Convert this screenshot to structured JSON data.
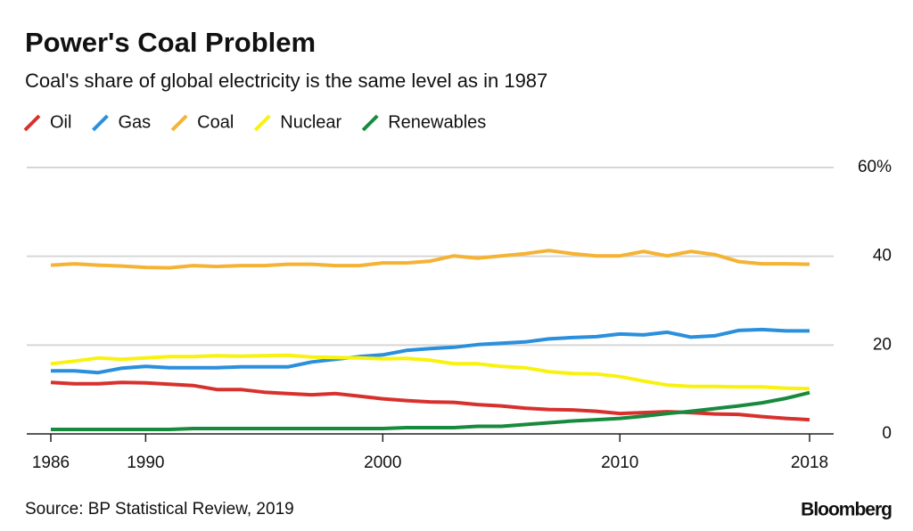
{
  "chart_data": {
    "type": "line",
    "title": "Power's Coal Problem",
    "subtitle": "Coal's share of global electricity is the same level as in 1987",
    "source": "Source: BP Statistical Review, 2019",
    "brand": "Bloomberg",
    "x": [
      1986,
      1987,
      1988,
      1989,
      1990,
      1991,
      1992,
      1993,
      1994,
      1995,
      1996,
      1997,
      1998,
      1999,
      2000,
      2001,
      2002,
      2003,
      2004,
      2005,
      2006,
      2007,
      2008,
      2009,
      2010,
      2011,
      2012,
      2013,
      2014,
      2015,
      2016,
      2017,
      2018
    ],
    "xlim": [
      1986,
      2018
    ],
    "xticks": [
      1986,
      1990,
      2000,
      2010,
      2018
    ],
    "ylim": [
      0,
      60
    ],
    "yticks": [
      0,
      20,
      40,
      {
        "value": 60,
        "label": "60%"
      }
    ],
    "grid": true,
    "legend": "top-left",
    "series": [
      {
        "name": "Oil",
        "color": "#d7312e",
        "values": [
          11.6,
          11.3,
          11.3,
          11.6,
          11.5,
          11.2,
          10.9,
          10.0,
          10.0,
          9.4,
          9.1,
          8.8,
          9.1,
          8.5,
          7.9,
          7.5,
          7.2,
          7.1,
          6.6,
          6.3,
          5.8,
          5.5,
          5.4,
          5.1,
          4.6,
          4.8,
          5.0,
          4.8,
          4.5,
          4.4,
          3.9,
          3.5,
          3.2
        ]
      },
      {
        "name": "Gas",
        "color": "#2a8fdc",
        "values": [
          14.2,
          14.2,
          13.8,
          14.8,
          15.2,
          14.9,
          14.9,
          14.9,
          15.1,
          15.1,
          15.1,
          16.2,
          16.8,
          17.4,
          17.8,
          18.8,
          19.2,
          19.5,
          20.1,
          20.4,
          20.7,
          21.4,
          21.7,
          21.9,
          22.5,
          22.3,
          22.9,
          21.8,
          22.1,
          23.3,
          23.5,
          23.2,
          23.2
        ]
      },
      {
        "name": "Coal",
        "color": "#f5b335",
        "values": [
          38.0,
          38.3,
          38.0,
          37.8,
          37.5,
          37.4,
          37.9,
          37.7,
          37.9,
          37.9,
          38.2,
          38.2,
          37.9,
          37.9,
          38.5,
          38.5,
          38.9,
          40.1,
          39.6,
          40.1,
          40.6,
          41.3,
          40.6,
          40.1,
          40.1,
          41.1,
          40.1,
          41.1,
          40.4,
          38.8,
          38.3,
          38.3,
          38.2
        ]
      },
      {
        "name": "Nuclear",
        "color": "#f8f20e",
        "values": [
          15.8,
          16.4,
          17.1,
          16.8,
          17.1,
          17.4,
          17.4,
          17.6,
          17.5,
          17.6,
          17.7,
          17.3,
          17.2,
          17.1,
          16.9,
          17.0,
          16.6,
          15.8,
          15.8,
          15.2,
          14.9,
          14.0,
          13.6,
          13.5,
          12.9,
          11.9,
          11.0,
          10.7,
          10.7,
          10.6,
          10.6,
          10.3,
          10.2
        ]
      },
      {
        "name": "Renewables",
        "color": "#178a3d",
        "values": [
          1.0,
          1.0,
          1.0,
          1.0,
          1.0,
          1.0,
          1.2,
          1.2,
          1.2,
          1.2,
          1.2,
          1.2,
          1.2,
          1.2,
          1.2,
          1.4,
          1.4,
          1.4,
          1.7,
          1.7,
          2.1,
          2.5,
          2.9,
          3.2,
          3.5,
          4.0,
          4.6,
          5.1,
          5.7,
          6.3,
          7.0,
          8.0,
          9.3
        ]
      }
    ]
  }
}
